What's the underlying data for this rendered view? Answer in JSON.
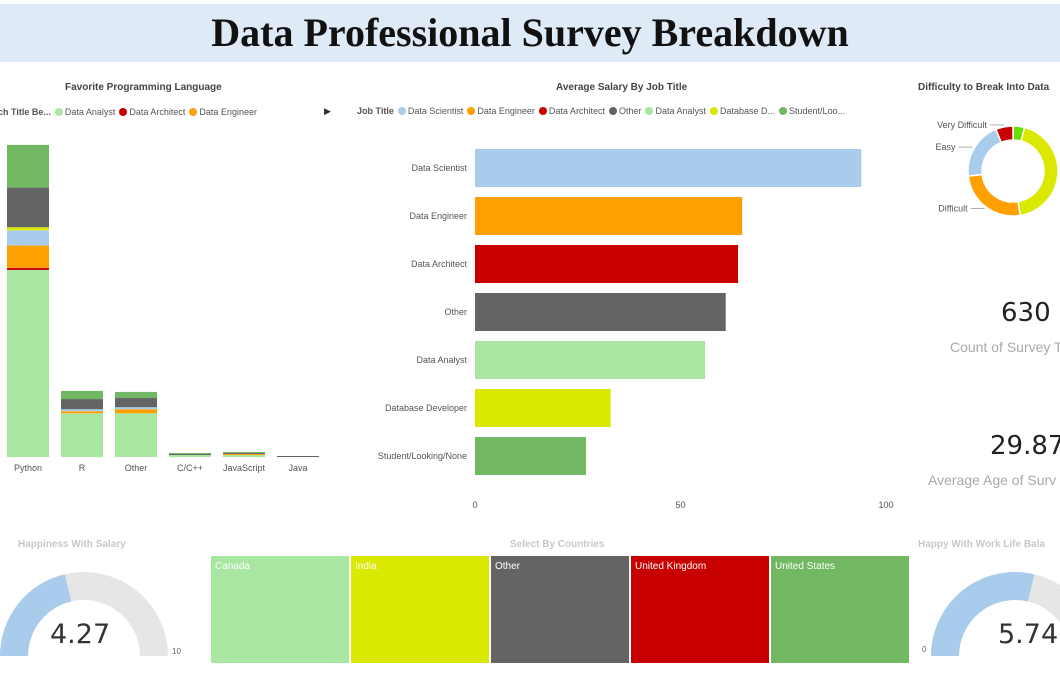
{
  "header": {
    "title": "Data Professional Survey Breakdown"
  },
  "colors": {
    "data_scientist": "#a9cbec",
    "data_engineer": "#ffa000",
    "data_architect": "#c80000",
    "other": "#646464",
    "data_analyst": "#a8e6a1",
    "database_developer": "#dbe800",
    "student": "#72b862",
    "bright_green": "#66e000",
    "gauge_track": "#e6e6e6"
  },
  "lang_panel": {
    "title": "Favorite Programming Language",
    "legend_title": "ch Title Be...",
    "legend_items": [
      {
        "label": "Data Analyst",
        "color": "#a8e6a1"
      },
      {
        "label": "Data Architect",
        "color": "#c80000"
      },
      {
        "label": "Data Engineer",
        "color": "#ffa000"
      }
    ]
  },
  "salary_panel": {
    "title": "Average Salary By Job Title",
    "legend_title": "Job Title",
    "legend_items": [
      {
        "label": "Data Scientist",
        "color": "#a9cbec"
      },
      {
        "label": "Data Engineer",
        "color": "#ffa000"
      },
      {
        "label": "Data Architect",
        "color": "#c80000"
      },
      {
        "label": "Other",
        "color": "#646464"
      },
      {
        "label": "Data Analyst",
        "color": "#a8e6a1"
      },
      {
        "label": "Database D...",
        "color": "#dbe800"
      },
      {
        "label": "Student/Loo...",
        "color": "#72b862"
      }
    ]
  },
  "difficulty_panel": {
    "title": "Difficulty to Break Into Data"
  },
  "kpis": {
    "count_value": "630",
    "count_label": "Count of Survey T",
    "age_value": "29.87",
    "age_label": "Average Age of Surv"
  },
  "happiness_panel": {
    "title": "Happiness With Salary",
    "value": "4.27",
    "max_label": "10"
  },
  "countries_panel": {
    "title": "Select By Countries",
    "tiles": [
      {
        "label": "Canada",
        "color": "#a8e6a1"
      },
      {
        "label": "India",
        "color": "#dbe800"
      },
      {
        "label": "Other",
        "color": "#646464"
      },
      {
        "label": "United Kingdom",
        "color": "#c80000"
      },
      {
        "label": "United States",
        "color": "#72b862"
      }
    ]
  },
  "worklife_panel": {
    "title": "Happy With Work Life Bala",
    "value": "5.74",
    "min_label": "0"
  },
  "chart_data": [
    {
      "type": "bar",
      "orientation": "vertical",
      "stacked": true,
      "title": "Favorite Programming Language",
      "categories": [
        "Python",
        "R",
        "Other",
        "C/C++",
        "JavaScript",
        "Java"
      ],
      "ylim": [
        0,
        300
      ],
      "series": [
        {
          "name": "Data Analyst",
          "color": "#a8e6a1",
          "values": [
            184,
            43,
            43,
            2,
            2,
            0
          ]
        },
        {
          "name": "Data Architect",
          "color": "#c80000",
          "values": [
            2,
            0,
            0,
            0,
            0,
            0
          ]
        },
        {
          "name": "Data Engineer",
          "color": "#ffa000",
          "values": [
            22,
            2,
            4,
            0,
            1,
            0
          ]
        },
        {
          "name": "Data Scientist",
          "color": "#a9cbec",
          "values": [
            15,
            2,
            2,
            0,
            0,
            0
          ]
        },
        {
          "name": "Database Developer",
          "color": "#dbe800",
          "values": [
            3,
            0,
            0,
            0,
            0,
            0
          ]
        },
        {
          "name": "Other",
          "color": "#646464",
          "values": [
            39,
            10,
            9,
            1,
            1,
            1
          ]
        },
        {
          "name": "Student/Looking/None",
          "color": "#72b862",
          "values": [
            42,
            8,
            6,
            1,
            1,
            0
          ]
        }
      ]
    },
    {
      "type": "bar",
      "orientation": "horizontal",
      "title": "Average Salary By Job Title",
      "categories": [
        "Data Scientist",
        "Data Engineer",
        "Data Architect",
        "Other",
        "Data Analyst",
        "Database Developer",
        "Student/Looking/None"
      ],
      "values": [
        94,
        65,
        64,
        61,
        56,
        33,
        27
      ],
      "colors": [
        "#a9cbec",
        "#ffa000",
        "#c80000",
        "#646464",
        "#a8e6a1",
        "#dbe800",
        "#72b862"
      ],
      "xlim": [
        0,
        100
      ],
      "xticks": [
        0,
        50,
        100
      ]
    },
    {
      "type": "pie",
      "donut": true,
      "title": "Difficulty to Break Into Data",
      "slices": [
        {
          "label": "",
          "value": 4,
          "color": "#66e000"
        },
        {
          "label": "",
          "value": 42,
          "color": "#dbe800"
        },
        {
          "label": "Difficult",
          "value": 25,
          "color": "#ffa000"
        },
        {
          "label": "Easy",
          "value": 20,
          "color": "#a9cbec"
        },
        {
          "label": "Very Difficult",
          "value": 6,
          "color": "#c80000"
        }
      ]
    }
  ]
}
